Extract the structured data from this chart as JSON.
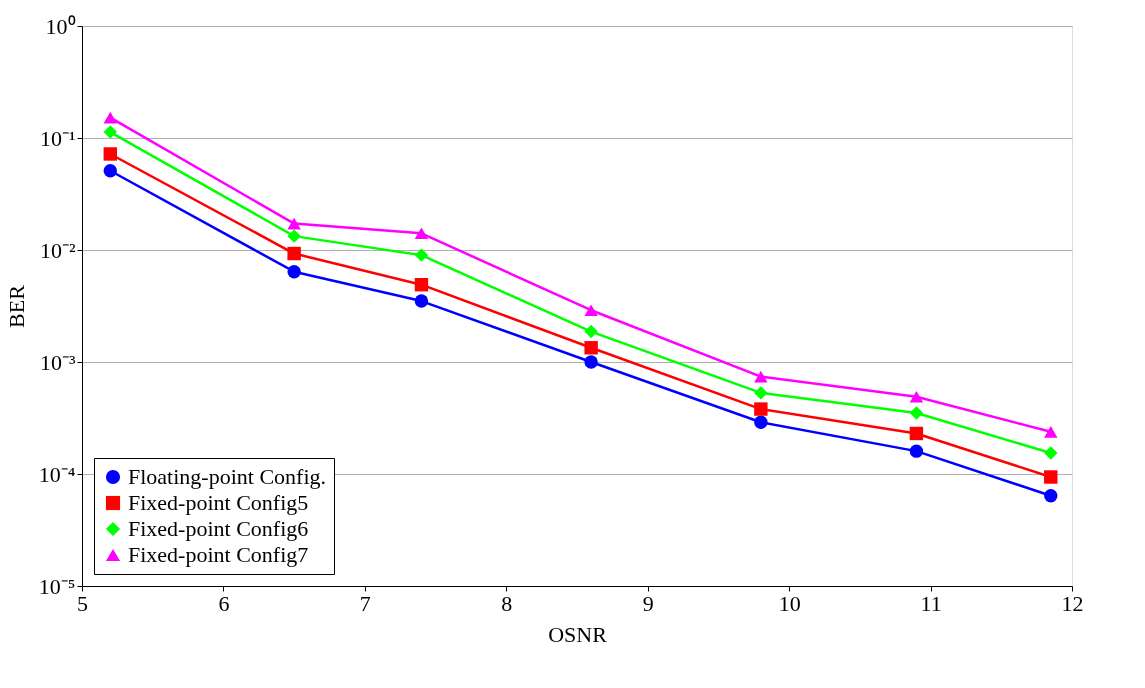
{
  "chart_data": {
    "type": "line",
    "xlabel": "OSNR",
    "ylabel": "BER",
    "log": "y",
    "grid": "y",
    "legend": "bottom left",
    "line_style": "solid",
    "x": [
      5.2,
      6.5,
      7.4,
      8.6,
      9.8,
      10.9,
      11.85
    ],
    "xlim": [
      5,
      12
    ],
    "xticks": [
      5,
      6,
      7,
      8,
      9,
      10,
      11,
      12
    ],
    "ylim": [
      1e-05,
      1
    ],
    "yticks": [
      {
        "value": 1e-05,
        "label": "10⁻⁵"
      },
      {
        "value": 0.0001,
        "label": "10⁻⁴"
      },
      {
        "value": 0.001,
        "label": "10⁻³"
      },
      {
        "value": 0.01,
        "label": "10⁻²"
      },
      {
        "value": 0.1,
        "label": "10⁻¹"
      },
      {
        "value": 1,
        "label": "10⁰"
      }
    ],
    "series": [
      {
        "name": "Floating-point Config.",
        "color": "#0000ff",
        "marker": "circle",
        "values": [
          0.051,
          0.0064,
          0.0035,
          0.001,
          0.00029,
          0.00016,
          6.4e-05
        ]
      },
      {
        "name": "Fixed-point Config5",
        "color": "#ff0000",
        "marker": "square",
        "values": [
          0.072,
          0.0093,
          0.0049,
          0.00134,
          0.00038,
          0.00023,
          9.4e-05
        ]
      },
      {
        "name": "Fixed-point Config6",
        "color": "#00ff00",
        "marker": "diamond",
        "values": [
          0.113,
          0.0133,
          0.009,
          0.00187,
          0.00053,
          0.00035,
          0.000154
        ]
      },
      {
        "name": "Fixed-point Config7",
        "color": "#ff00ff",
        "marker": "triangle",
        "values": [
          0.152,
          0.0172,
          0.0141,
          0.0029,
          0.00074,
          0.00049,
          0.000238
        ]
      }
    ]
  }
}
